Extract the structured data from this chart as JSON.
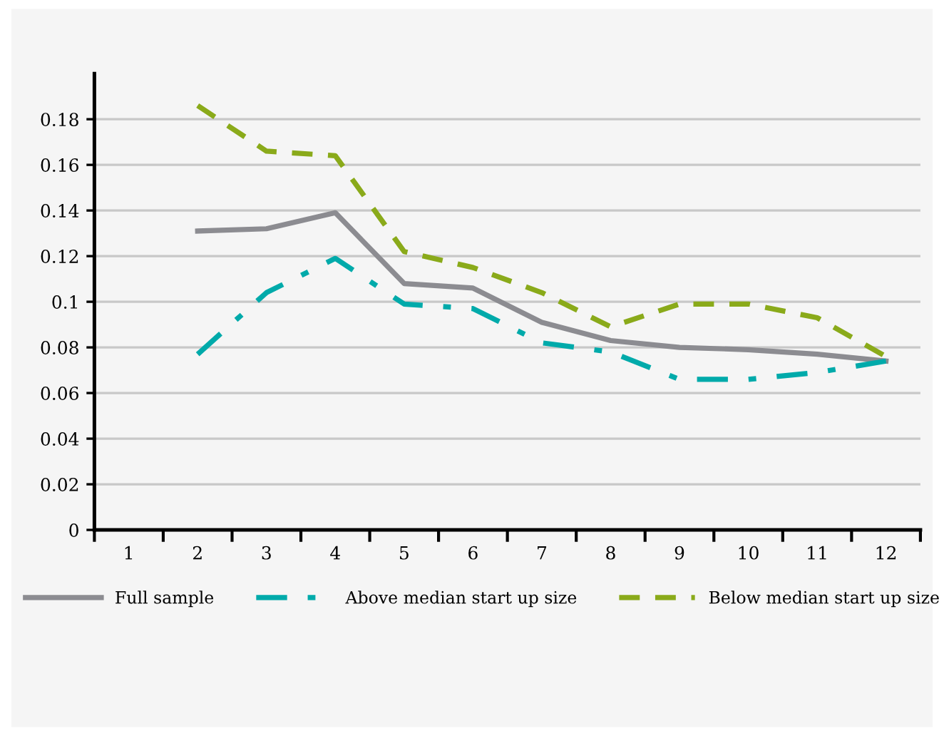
{
  "chart_data": {
    "type": "line",
    "categories": [
      "1",
      "2",
      "3",
      "4",
      "5",
      "6",
      "7",
      "8",
      "9",
      "10",
      "11",
      "12"
    ],
    "series": [
      {
        "name": "Full sample",
        "color": "#8c8c91",
        "line_style": "solid",
        "values": [
          null,
          0.131,
          0.132,
          0.139,
          0.108,
          0.106,
          0.091,
          0.083,
          0.08,
          0.079,
          0.077,
          0.074
        ]
      },
      {
        "name": "Above median start up size",
        "color": "#00aaaa",
        "line_style": "dashdot",
        "values": [
          null,
          0.077,
          0.104,
          0.119,
          0.099,
          0.097,
          0.082,
          0.078,
          0.066,
          0.066,
          0.069,
          0.074
        ]
      },
      {
        "name": "Below median start up size",
        "color": "#8aaa1a",
        "line_style": "dashed",
        "values": [
          null,
          0.186,
          0.166,
          0.164,
          0.122,
          0.115,
          0.104,
          0.089,
          0.099,
          0.099,
          0.093,
          0.076
        ]
      }
    ],
    "ylim": [
      0,
      0.2
    ],
    "yticks": [
      0,
      0.02,
      0.04,
      0.06,
      0.08,
      {
        "value": 0.1,
        "label": "0.1"
      },
      0.12,
      0.14,
      0.16,
      0.18
    ],
    "grid": "y",
    "legend": "bottom",
    "marker": "none"
  }
}
